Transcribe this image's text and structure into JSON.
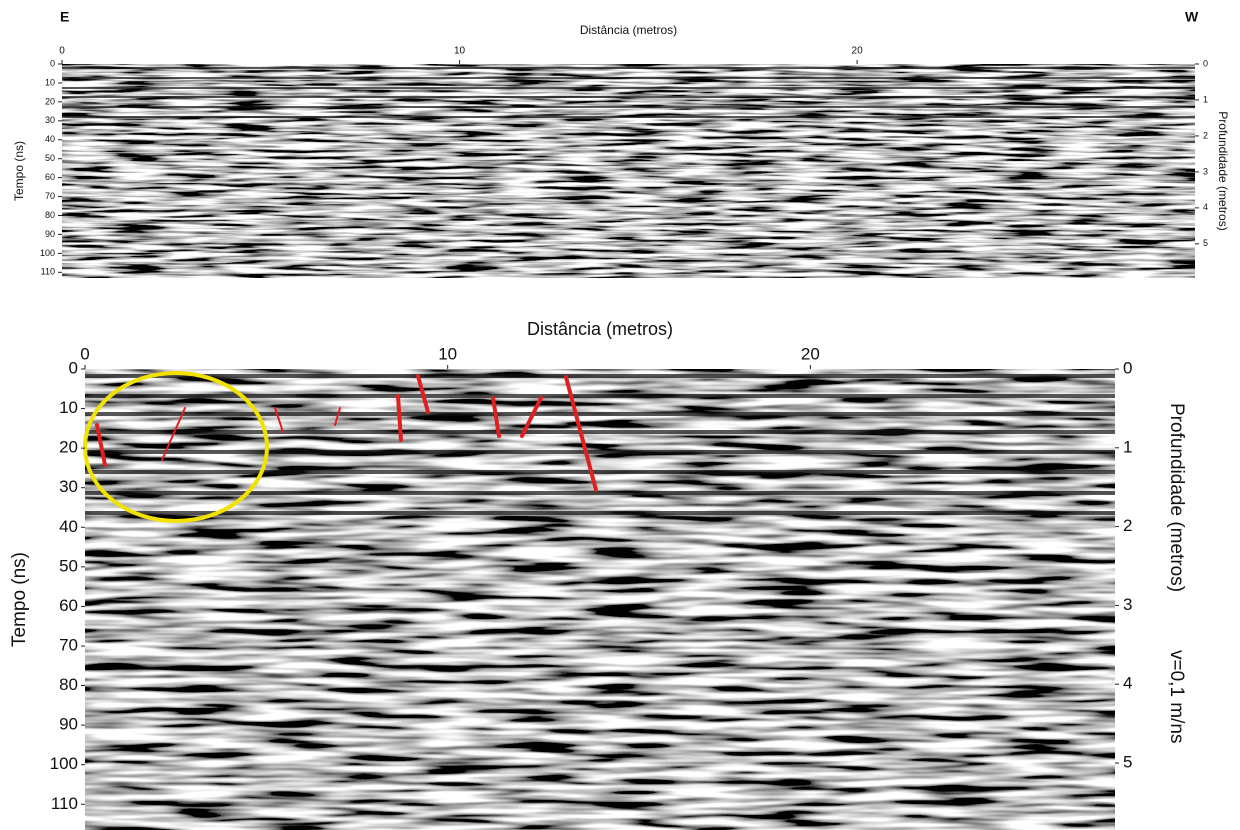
{
  "labels": {
    "east": "E",
    "west": "W"
  },
  "chart_data": [
    {
      "type": "radargram",
      "title": "Distância (metros)",
      "ylabel": "Tempo (ns)",
      "y2label": "Profundidade (metros)",
      "xlim": [
        0,
        28.5
      ],
      "xticks": [
        0,
        10,
        20
      ],
      "ylim": [
        0,
        113
      ],
      "yticks": [
        0,
        10,
        20,
        30,
        40,
        50,
        60,
        70,
        80,
        90,
        100,
        110
      ],
      "y2lim": [
        0,
        5.95
      ],
      "y2ticks": [
        0,
        1,
        2,
        3,
        4,
        5
      ]
    },
    {
      "type": "radargram",
      "title": "Distância (metros)",
      "ylabel": "Tempo (ns)",
      "y2label": "Profundidade (metros)",
      "annotation": "v=0,1 m/ns",
      "xlim": [
        0,
        28.4
      ],
      "xticks": [
        0,
        10,
        20
      ],
      "ylim": [
        0,
        116.5
      ],
      "yticks": [
        0,
        10,
        20,
        30,
        40,
        50,
        60,
        70,
        80,
        90,
        100,
        110
      ],
      "y2lim": [
        0,
        5.85
      ],
      "y2ticks": [
        0,
        1,
        2,
        3,
        4,
        5
      ]
    }
  ]
}
